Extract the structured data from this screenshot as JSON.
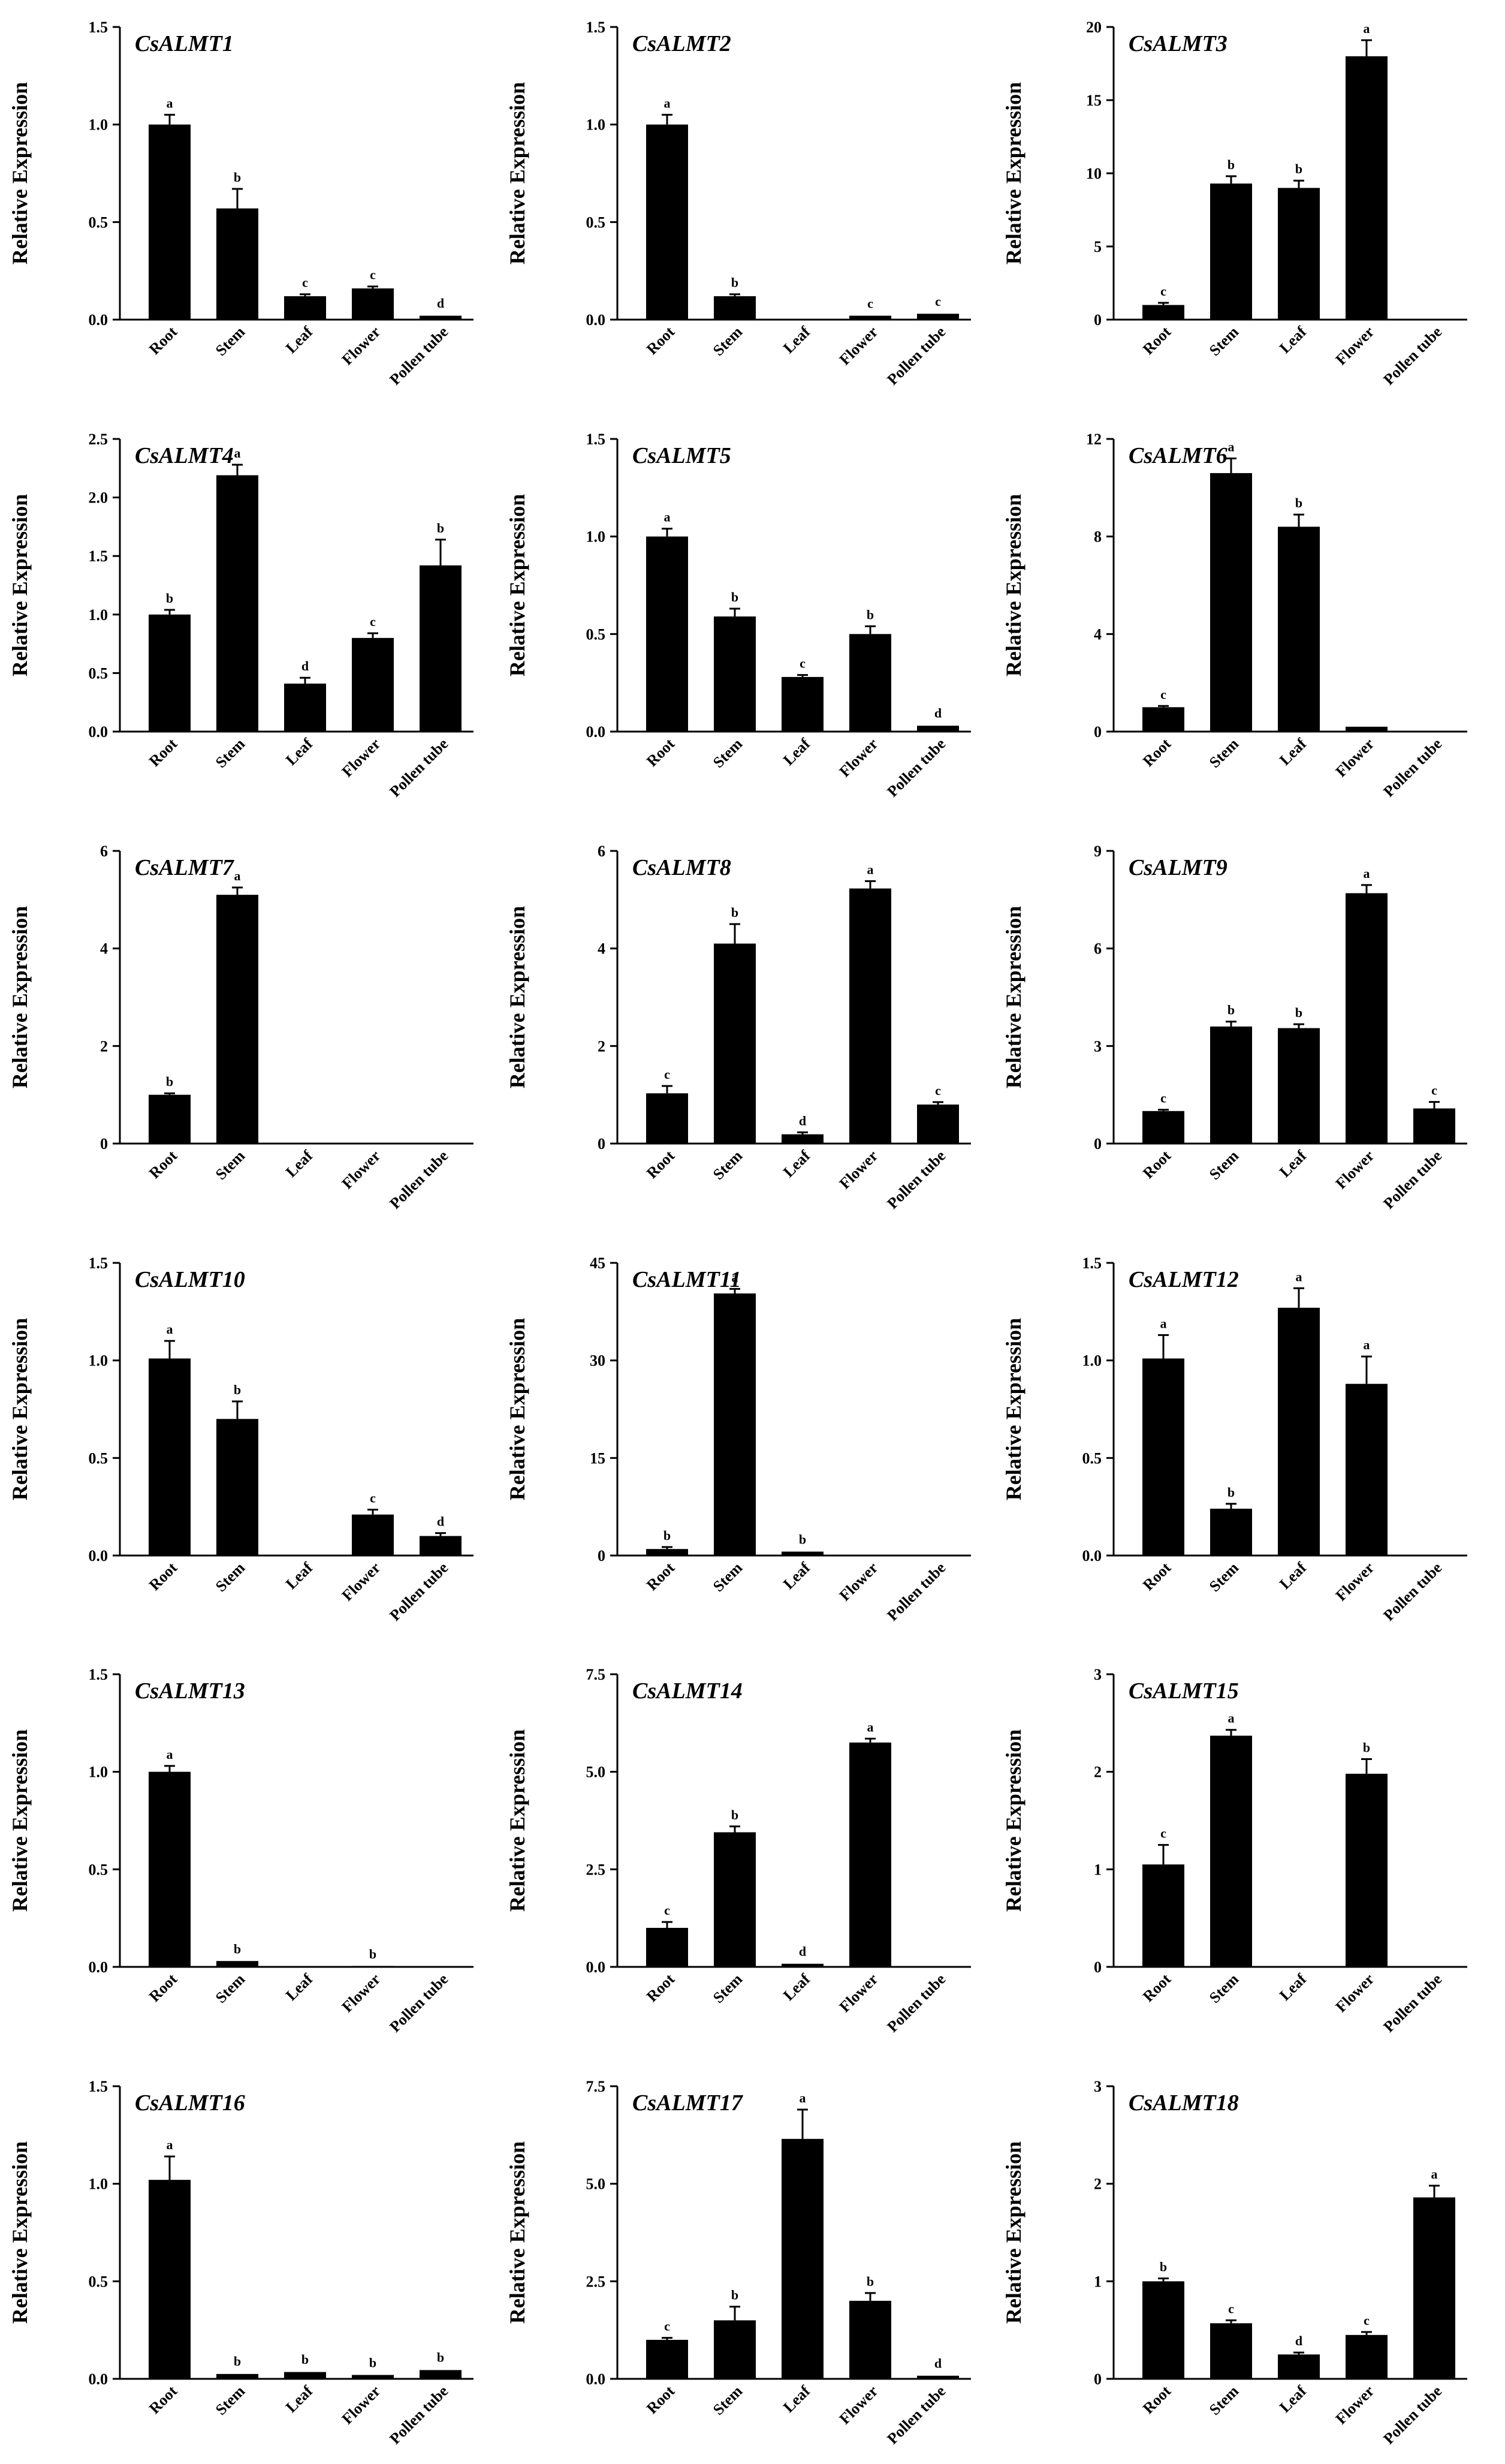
{
  "figure": {
    "ylabel": "Relative Expression"
  },
  "chart_data": [
    {
      "type": "bar",
      "title": "CsALMT1",
      "ylabel": "Relative Expression",
      "categories": [
        "Root",
        "Stem",
        "Leaf",
        "Flower",
        "Pollen tube"
      ],
      "ylim": [
        0,
        1.5
      ],
      "yticks": [
        "0.0",
        "0.5",
        "1.0",
        "1.5"
      ],
      "values": [
        1.0,
        0.57,
        0.12,
        0.16,
        0.02
      ],
      "errors": [
        0.05,
        0.1,
        0.01,
        0.01,
        0.005
      ],
      "letters": [
        "a",
        "b",
        "c",
        "c",
        "d"
      ]
    },
    {
      "type": "bar",
      "title": "CsALMT2",
      "ylabel": "Relative Expression",
      "categories": [
        "Root",
        "Stem",
        "Leaf",
        "Flower",
        "Pollen tube"
      ],
      "ylim": [
        0,
        1.5
      ],
      "yticks": [
        "0.0",
        "0.5",
        "1.0",
        "1.5"
      ],
      "values": [
        1.0,
        0.12,
        0,
        0.02,
        0.03
      ],
      "errors": [
        0.05,
        0.01,
        0,
        0.003,
        0.004
      ],
      "letters": [
        "a",
        "b",
        "",
        "c",
        "c"
      ]
    },
    {
      "type": "bar",
      "title": "CsALMT3",
      "ylabel": "Relative Expression",
      "categories": [
        "Root",
        "Stem",
        "Leaf",
        "Flower",
        "Pollen tube"
      ],
      "ylim": [
        0,
        20
      ],
      "yticks": [
        "0",
        "5",
        "10",
        "15",
        "20"
      ],
      "values": [
        1.0,
        9.3,
        9.0,
        18.0,
        0
      ],
      "errors": [
        0.15,
        0.5,
        0.5,
        1.1,
        0
      ],
      "letters": [
        "c",
        "b",
        "b",
        "a",
        ""
      ]
    },
    {
      "type": "bar",
      "title": "CsALMT4",
      "ylabel": "Relative Expression",
      "categories": [
        "Root",
        "Stem",
        "Leaf",
        "Flower",
        "Pollen tube"
      ],
      "ylim": [
        0,
        2.5
      ],
      "yticks": [
        "0.0",
        "0.5",
        "1.0",
        "1.5",
        "2.0",
        "2.5"
      ],
      "values": [
        1.0,
        2.19,
        0.41,
        0.8,
        1.42
      ],
      "errors": [
        0.04,
        0.09,
        0.05,
        0.04,
        0.22
      ],
      "letters": [
        "b",
        "a",
        "d",
        "c",
        "b"
      ]
    },
    {
      "type": "bar",
      "title": "CsALMT5",
      "ylabel": "Relative Expression",
      "categories": [
        "Root",
        "Stem",
        "Leaf",
        "Flower",
        "Pollen tube"
      ],
      "ylim": [
        0,
        1.5
      ],
      "yticks": [
        "0.0",
        "0.5",
        "1.0",
        "1.5"
      ],
      "values": [
        1.0,
        0.59,
        0.28,
        0.5,
        0.03
      ],
      "errors": [
        0.04,
        0.04,
        0.01,
        0.04,
        0.005
      ],
      "letters": [
        "a",
        "b",
        "c",
        "b",
        "d"
      ]
    },
    {
      "type": "bar",
      "title": "CsALMT6",
      "ylabel": "Relative Expression",
      "categories": [
        "Root",
        "Stem",
        "Leaf",
        "Flower",
        "Pollen tube"
      ],
      "ylim": [
        0,
        12
      ],
      "yticks": [
        "0",
        "4",
        "8",
        "12"
      ],
      "values": [
        1.0,
        10.6,
        8.4,
        0.2,
        0
      ],
      "errors": [
        0.05,
        0.6,
        0.5,
        0.02,
        0
      ],
      "letters": [
        "c",
        "a",
        "b",
        "",
        ""
      ]
    },
    {
      "type": "bar",
      "title": "CsALMT7",
      "ylabel": "Relative Expression",
      "categories": [
        "Root",
        "Stem",
        "Leaf",
        "Flower",
        "Pollen tube"
      ],
      "ylim": [
        0,
        6
      ],
      "yticks": [
        "0",
        "2",
        "4",
        "6"
      ],
      "values": [
        1.0,
        5.1,
        0,
        0,
        0
      ],
      "errors": [
        0.03,
        0.15,
        0,
        0,
        0
      ],
      "letters": [
        "b",
        "a",
        "",
        "",
        ""
      ]
    },
    {
      "type": "bar",
      "title": "CsALMT8",
      "ylabel": "Relative Expression",
      "categories": [
        "Root",
        "Stem",
        "Leaf",
        "Flower",
        "Pollen tube"
      ],
      "ylim": [
        0,
        6
      ],
      "yticks": [
        "0",
        "2",
        "4",
        "6"
      ],
      "values": [
        1.03,
        4.1,
        0.19,
        5.23,
        0.8
      ],
      "errors": [
        0.15,
        0.4,
        0.04,
        0.15,
        0.05
      ],
      "letters": [
        "c",
        "b",
        "d",
        "a",
        "c"
      ]
    },
    {
      "type": "bar",
      "title": "CsALMT9",
      "ylabel": "Relative Expression",
      "categories": [
        "Root",
        "Stem",
        "Leaf",
        "Flower",
        "Pollen tube"
      ],
      "ylim": [
        0,
        9
      ],
      "yticks": [
        "0",
        "3",
        "6",
        "9"
      ],
      "values": [
        1.0,
        3.6,
        3.55,
        7.7,
        1.08
      ],
      "errors": [
        0.04,
        0.15,
        0.12,
        0.25,
        0.2
      ],
      "letters": [
        "c",
        "b",
        "b",
        "a",
        "c"
      ]
    },
    {
      "type": "bar",
      "title": "CsALMT10",
      "ylabel": "Relative Expression",
      "categories": [
        "Root",
        "Stem",
        "Leaf",
        "Flower",
        "Pollen tube"
      ],
      "ylim": [
        0,
        1.5
      ],
      "yticks": [
        "0.0",
        "0.5",
        "1.0",
        "1.5"
      ],
      "values": [
        1.01,
        0.7,
        0,
        0.21,
        0.1
      ],
      "errors": [
        0.09,
        0.09,
        0,
        0.025,
        0.015
      ],
      "letters": [
        "a",
        "b",
        "",
        "c",
        "d"
      ]
    },
    {
      "type": "bar",
      "title": "CsALMT11",
      "ylabel": "Relative Expression",
      "categories": [
        "Root",
        "Stem",
        "Leaf",
        "Flower",
        "Pollen tube"
      ],
      "ylim": [
        0,
        45
      ],
      "yticks": [
        "0",
        "15",
        "30",
        "45"
      ],
      "values": [
        1.0,
        40.3,
        0.6,
        0,
        0
      ],
      "errors": [
        0.3,
        0.7,
        0.1,
        0,
        0
      ],
      "letters": [
        "b",
        "a",
        "b",
        "",
        ""
      ]
    },
    {
      "type": "bar",
      "title": "CsALMT12",
      "ylabel": "Relative Expression",
      "categories": [
        "Root",
        "Stem",
        "Leaf",
        "Flower",
        "Pollen tube"
      ],
      "ylim": [
        0,
        1.5
      ],
      "yticks": [
        "0.0",
        "0.5",
        "1.0",
        "1.5"
      ],
      "values": [
        1.01,
        0.24,
        1.27,
        0.88,
        0
      ],
      "errors": [
        0.12,
        0.025,
        0.1,
        0.14,
        0
      ],
      "letters": [
        "a",
        "b",
        "a",
        "a",
        ""
      ]
    },
    {
      "type": "bar",
      "title": "CsALMT13",
      "ylabel": "Relative Expression",
      "categories": [
        "Root",
        "Stem",
        "Leaf",
        "Flower",
        "Pollen tube"
      ],
      "ylim": [
        0,
        1.5
      ],
      "yticks": [
        "0.0",
        "0.5",
        "1.0",
        "1.5"
      ],
      "values": [
        1.0,
        0.03,
        0,
        0.005,
        0
      ],
      "errors": [
        0.03,
        0.003,
        0,
        0.001,
        0
      ],
      "letters": [
        "a",
        "b",
        "",
        "b",
        ""
      ]
    },
    {
      "type": "bar",
      "title": "CsALMT14",
      "ylabel": "Relative Expression",
      "categories": [
        "Root",
        "Stem",
        "Leaf",
        "Flower",
        "Pollen tube"
      ],
      "ylim": [
        0,
        7.5
      ],
      "yticks": [
        "0.0",
        "2.5",
        "5.0",
        "7.5"
      ],
      "values": [
        1.0,
        3.45,
        0.08,
        5.75,
        0
      ],
      "errors": [
        0.15,
        0.15,
        0.02,
        0.1,
        0
      ],
      "letters": [
        "c",
        "b",
        "d",
        "a",
        ""
      ]
    },
    {
      "type": "bar",
      "title": "CsALMT15",
      "ylabel": "Relative Expression",
      "categories": [
        "Root",
        "Stem",
        "Leaf",
        "Flower",
        "Pollen tube"
      ],
      "ylim": [
        0,
        3
      ],
      "yticks": [
        "0",
        "1",
        "2",
        "3"
      ],
      "values": [
        1.05,
        2.37,
        0,
        1.98,
        0
      ],
      "errors": [
        0.2,
        0.06,
        0,
        0.15,
        0
      ],
      "letters": [
        "c",
        "a",
        "",
        "b",
        ""
      ]
    },
    {
      "type": "bar",
      "title": "CsALMT16",
      "ylabel": "Relative Expression",
      "categories": [
        "Root",
        "Stem",
        "Leaf",
        "Flower",
        "Pollen tube"
      ],
      "ylim": [
        0,
        1.5
      ],
      "yticks": [
        "0.0",
        "0.5",
        "1.0",
        "1.5"
      ],
      "values": [
        1.02,
        0.025,
        0.035,
        0.02,
        0.045
      ],
      "errors": [
        0.12,
        0.005,
        0.005,
        0.003,
        0.006
      ],
      "letters": [
        "a",
        "b",
        "b",
        "b",
        "b"
      ]
    },
    {
      "type": "bar",
      "title": "CsALMT17",
      "ylabel": "Relative Expression",
      "categories": [
        "Root",
        "Stem",
        "Leaf",
        "Flower",
        "Pollen tube"
      ],
      "ylim": [
        0,
        7.5
      ],
      "yticks": [
        "0.0",
        "2.5",
        "5.0",
        "7.5"
      ],
      "values": [
        1.0,
        1.5,
        6.15,
        2.0,
        0.08
      ],
      "errors": [
        0.05,
        0.35,
        0.75,
        0.2,
        0.02
      ],
      "letters": [
        "c",
        "b",
        "a",
        "b",
        "d"
      ]
    },
    {
      "type": "bar",
      "title": "CsALMT18",
      "ylabel": "Relative Expression",
      "categories": [
        "Root",
        "Stem",
        "Leaf",
        "Flower",
        "Pollen tube"
      ],
      "ylim": [
        0,
        3
      ],
      "yticks": [
        "0",
        "1",
        "2",
        "3"
      ],
      "values": [
        1.0,
        0.57,
        0.25,
        0.45,
        1.86
      ],
      "errors": [
        0.03,
        0.03,
        0.02,
        0.03,
        0.12
      ],
      "letters": [
        "b",
        "c",
        "d",
        "c",
        "a"
      ]
    }
  ]
}
